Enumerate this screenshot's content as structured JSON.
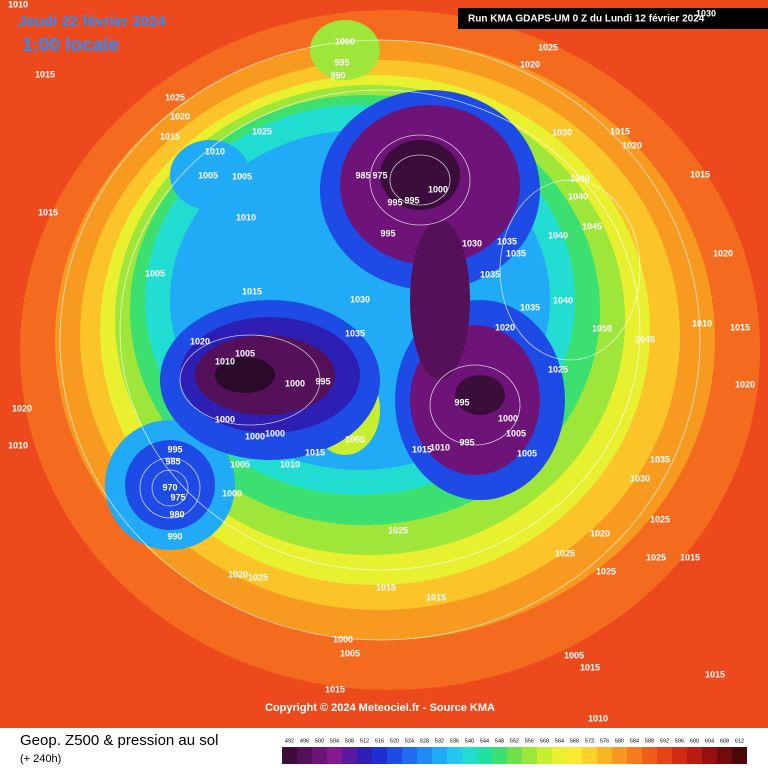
{
  "header": {
    "date": "Jeudi 22 février 2024",
    "time": "1:00 locale",
    "run": "Run KMA GDAPS-UM 0 Z du Lundi 12 février 2024"
  },
  "copyright": "Copyright © 2024 Meteociel.fr - Source KMA",
  "footer": {
    "title": "Geop. Z500 & pression au sol",
    "lead": "(+ 240h)"
  },
  "colorbar": {
    "levels": [
      492,
      496,
      500,
      504,
      508,
      512,
      516,
      520,
      524,
      528,
      532,
      536,
      540,
      544,
      548,
      552,
      556,
      560,
      564,
      568,
      572,
      576,
      580,
      584,
      588,
      592,
      596,
      600,
      604,
      608,
      612
    ],
    "colors": [
      "#3b0d3b",
      "#55105a",
      "#6e1478",
      "#861a8f",
      "#5a1aa0",
      "#2d1fb4",
      "#1e2fd0",
      "#1e4be6",
      "#1f6cf0",
      "#1f8cf5",
      "#21aaf5",
      "#22c8f0",
      "#21dcd0",
      "#20e0a0",
      "#3ce070",
      "#6ee04a",
      "#9ee63a",
      "#c8ee30",
      "#e8f030",
      "#fbe830",
      "#fdd02a",
      "#fbb424",
      "#f89820",
      "#f47c1c",
      "#ee5e18",
      "#e64416",
      "#d42c14",
      "#b81c12",
      "#961010",
      "#720c0c",
      "#4a0808"
    ]
  },
  "pressure_labels": [
    1010,
    1015,
    1025,
    1020,
    1015,
    1010,
    1005,
    1005,
    1025,
    1000,
    995,
    990,
    1025,
    1020,
    1015,
    1010,
    1005,
    1015,
    1030,
    1035,
    1020,
    1005,
    1010,
    1000,
    995,
    1000,
    1000,
    1000,
    995,
    985,
    970,
    975,
    980,
    990,
    1000,
    1005,
    1010,
    1015,
    1005,
    985,
    975,
    995,
    995,
    1000,
    995,
    1030,
    1035,
    1035,
    1035,
    1040,
    1035,
    1020,
    1025,
    995,
    1000,
    1005,
    1005,
    995,
    1015,
    1010,
    1030,
    1040,
    1040,
    1040,
    1045,
    1050,
    1045,
    1035,
    1030,
    1025,
    1020,
    1025,
    1025,
    1015,
    1025,
    1025,
    1015,
    1015,
    1000,
    1005,
    1015,
    1005,
    1015,
    1015,
    1010,
    1020,
    1010,
    1020,
    1025,
    1030,
    1015,
    1020,
    1015,
    1020,
    1010,
    1015,
    1020
  ]
}
